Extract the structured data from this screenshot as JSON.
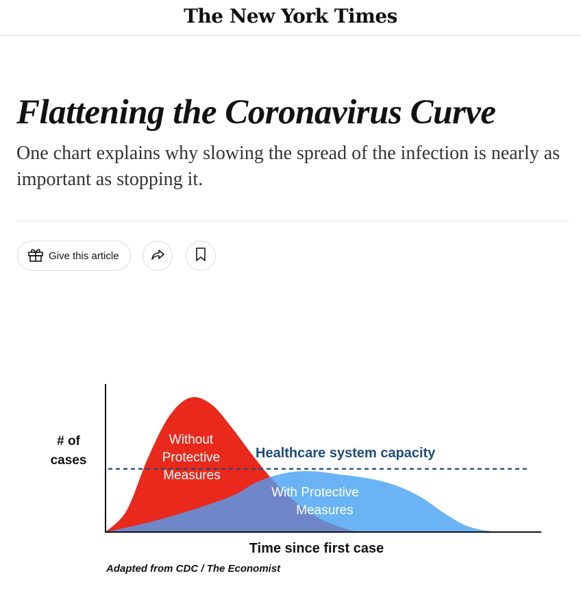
{
  "masthead": {
    "logo_text": "The New York Times"
  },
  "article": {
    "headline": "Flattening the Coronavirus Curve",
    "summary": "One chart explains why slowing the spread of the infection is nearly as important as stopping it."
  },
  "actions": {
    "gift_label": "Give this article",
    "icons": [
      "gift-icon",
      "share-icon",
      "bookmark-icon"
    ]
  },
  "chart_data": {
    "type": "area",
    "title": "",
    "xlabel": "Time since first case",
    "ylabel_line1": "# of",
    "ylabel_line2": "cases",
    "source": "Adapted from CDC / The Economist",
    "capacity_label": "Healthcare system capacity",
    "capacity_level": 0.47,
    "series": [
      {
        "name_lines": [
          "Without",
          "Protective",
          "Measures"
        ],
        "color": "#e8291c",
        "x": [
          0,
          0.05,
          0.1,
          0.15,
          0.2,
          0.25,
          0.3,
          0.35,
          0.4,
          0.45,
          0.5,
          0.55,
          0.6,
          0.65,
          0.7,
          0.75,
          1.0
        ],
        "y": [
          0,
          0.16,
          0.55,
          0.86,
          1.0,
          0.95,
          0.77,
          0.56,
          0.37,
          0.22,
          0.11,
          0.04,
          0,
          0,
          0,
          0,
          0
        ]
      },
      {
        "name_lines": [
          "With Protective",
          "Measures"
        ],
        "color": "#6ab4f5",
        "x": [
          0,
          0.1,
          0.2,
          0.3,
          0.35,
          0.4,
          0.45,
          0.5,
          0.55,
          0.6,
          0.65,
          0.7,
          0.75,
          0.8,
          0.85,
          0.9,
          0.95,
          1.0
        ],
        "y": [
          0,
          0.07,
          0.16,
          0.27,
          0.36,
          0.42,
          0.45,
          0.45,
          0.43,
          0.41,
          0.38,
          0.33,
          0.25,
          0.14,
          0.05,
          0.01,
          0,
          0
        ]
      }
    ],
    "overlap_color": "#6f87c8",
    "capacity_color": "#1c4c7c"
  }
}
